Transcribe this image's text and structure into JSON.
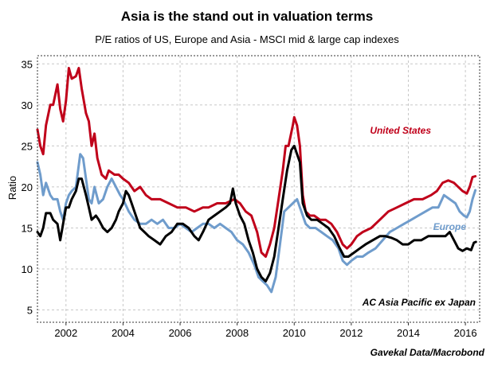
{
  "chart_data": {
    "type": "line",
    "title": "Asia is the stand out in valuation terms",
    "subtitle": "P/E ratios of US, Europe and Asia - MSCI mid & large cap indexes",
    "ylabel": "Ratio",
    "xlabel": "",
    "source": "Gavekal Data/Macrobond",
    "xlim": [
      2001.0,
      2016.5
    ],
    "ylim": [
      3.5,
      36
    ],
    "x_ticks": [
      2002,
      2004,
      2006,
      2008,
      2010,
      2012,
      2014,
      2016
    ],
    "y_ticks": [
      5,
      10,
      15,
      20,
      25,
      30,
      35
    ],
    "grid": true,
    "series": [
      {
        "name": "United States",
        "color": "#c0001a",
        "label_position": "upper right, above line",
        "points": [
          [
            2001.0,
            27
          ],
          [
            2001.1,
            25
          ],
          [
            2001.2,
            24
          ],
          [
            2001.3,
            27.5
          ],
          [
            2001.45,
            30
          ],
          [
            2001.55,
            30
          ],
          [
            2001.7,
            32.5
          ],
          [
            2001.8,
            29.5
          ],
          [
            2001.9,
            28
          ],
          [
            2002.0,
            30.5
          ],
          [
            2002.1,
            34.5
          ],
          [
            2002.2,
            33.2
          ],
          [
            2002.35,
            33.5
          ],
          [
            2002.45,
            34.5
          ],
          [
            2002.55,
            32
          ],
          [
            2002.7,
            29
          ],
          [
            2002.8,
            28
          ],
          [
            2002.9,
            25
          ],
          [
            2003.0,
            26.5
          ],
          [
            2003.1,
            23.5
          ],
          [
            2003.25,
            21.5
          ],
          [
            2003.4,
            21
          ],
          [
            2003.5,
            22
          ],
          [
            2003.7,
            21.5
          ],
          [
            2003.85,
            21.5
          ],
          [
            2004.0,
            21
          ],
          [
            2004.2,
            20.5
          ],
          [
            2004.4,
            19.5
          ],
          [
            2004.6,
            20
          ],
          [
            2004.8,
            19
          ],
          [
            2005.0,
            18.5
          ],
          [
            2005.3,
            18.5
          ],
          [
            2005.6,
            18
          ],
          [
            2005.9,
            17.5
          ],
          [
            2006.2,
            17.5
          ],
          [
            2006.5,
            17
          ],
          [
            2006.8,
            17.5
          ],
          [
            2007.0,
            17.5
          ],
          [
            2007.3,
            18
          ],
          [
            2007.6,
            18
          ],
          [
            2007.9,
            18.5
          ],
          [
            2008.1,
            18
          ],
          [
            2008.3,
            17
          ],
          [
            2008.5,
            16.5
          ],
          [
            2008.7,
            14.5
          ],
          [
            2008.85,
            12
          ],
          [
            2009.0,
            11.5
          ],
          [
            2009.15,
            13
          ],
          [
            2009.3,
            15
          ],
          [
            2009.45,
            18.5
          ],
          [
            2009.6,
            22
          ],
          [
            2009.7,
            25
          ],
          [
            2009.8,
            25
          ],
          [
            2009.95,
            27.5
          ],
          [
            2010.0,
            28.5
          ],
          [
            2010.1,
            27.5
          ],
          [
            2010.2,
            25
          ],
          [
            2010.3,
            19
          ],
          [
            2010.4,
            17
          ],
          [
            2010.55,
            16.5
          ],
          [
            2010.7,
            16.5
          ],
          [
            2010.9,
            16
          ],
          [
            2011.1,
            16
          ],
          [
            2011.3,
            15.5
          ],
          [
            2011.5,
            14.5
          ],
          [
            2011.7,
            13
          ],
          [
            2011.85,
            12.5
          ],
          [
            2012.0,
            13
          ],
          [
            2012.2,
            14
          ],
          [
            2012.4,
            14.5
          ],
          [
            2012.7,
            15
          ],
          [
            2013.0,
            16
          ],
          [
            2013.3,
            17
          ],
          [
            2013.6,
            17.5
          ],
          [
            2013.9,
            18
          ],
          [
            2014.2,
            18.5
          ],
          [
            2014.5,
            18.5
          ],
          [
            2014.8,
            19
          ],
          [
            2015.0,
            19.5
          ],
          [
            2015.2,
            20.5
          ],
          [
            2015.4,
            20.8
          ],
          [
            2015.6,
            20.5
          ],
          [
            2015.75,
            20
          ],
          [
            2015.9,
            19.5
          ],
          [
            2016.05,
            19.2
          ],
          [
            2016.15,
            20
          ],
          [
            2016.25,
            21.2
          ],
          [
            2016.35,
            21.3
          ]
        ]
      },
      {
        "name": "Europe",
        "color": "#6f9ccc",
        "label_position": "right, above line",
        "points": [
          [
            2001.0,
            23
          ],
          [
            2001.1,
            21.5
          ],
          [
            2001.2,
            19
          ],
          [
            2001.3,
            20.5
          ],
          [
            2001.45,
            19
          ],
          [
            2001.55,
            18.5
          ],
          [
            2001.7,
            18.5
          ],
          [
            2001.8,
            17
          ],
          [
            2001.9,
            16
          ],
          [
            2002.0,
            18
          ],
          [
            2002.1,
            19
          ],
          [
            2002.2,
            19.5
          ],
          [
            2002.35,
            20
          ],
          [
            2002.5,
            24
          ],
          [
            2002.6,
            23.5
          ],
          [
            2002.7,
            21
          ],
          [
            2002.8,
            18.5
          ],
          [
            2002.9,
            18
          ],
          [
            2003.0,
            20
          ],
          [
            2003.15,
            18
          ],
          [
            2003.3,
            18.5
          ],
          [
            2003.45,
            20
          ],
          [
            2003.6,
            21
          ],
          [
            2003.75,
            20
          ],
          [
            2003.9,
            19
          ],
          [
            2004.0,
            18.5
          ],
          [
            2004.2,
            17
          ],
          [
            2004.4,
            16
          ],
          [
            2004.6,
            15.5
          ],
          [
            2004.8,
            15.5
          ],
          [
            2005.0,
            16
          ],
          [
            2005.2,
            15.5
          ],
          [
            2005.4,
            16
          ],
          [
            2005.6,
            15
          ],
          [
            2005.8,
            15
          ],
          [
            2006.0,
            15.5
          ],
          [
            2006.2,
            15
          ],
          [
            2006.4,
            14.5
          ],
          [
            2006.6,
            15
          ],
          [
            2006.8,
            15.5
          ],
          [
            2007.0,
            15.5
          ],
          [
            2007.2,
            15
          ],
          [
            2007.4,
            15.5
          ],
          [
            2007.6,
            15
          ],
          [
            2007.8,
            14.5
          ],
          [
            2008.0,
            13.5
          ],
          [
            2008.2,
            13
          ],
          [
            2008.4,
            12
          ],
          [
            2008.6,
            10.5
          ],
          [
            2008.75,
            9
          ],
          [
            2008.9,
            8.5
          ],
          [
            2009.05,
            8
          ],
          [
            2009.2,
            7.2
          ],
          [
            2009.35,
            9
          ],
          [
            2009.5,
            13
          ],
          [
            2009.65,
            17
          ],
          [
            2009.8,
            17.5
          ],
          [
            2009.95,
            18
          ],
          [
            2010.1,
            18.5
          ],
          [
            2010.25,
            17
          ],
          [
            2010.4,
            15.5
          ],
          [
            2010.55,
            15
          ],
          [
            2010.75,
            15
          ],
          [
            2010.95,
            14.5
          ],
          [
            2011.15,
            14
          ],
          [
            2011.35,
            13.5
          ],
          [
            2011.55,
            12.5
          ],
          [
            2011.7,
            11
          ],
          [
            2011.85,
            10.5
          ],
          [
            2012.0,
            11
          ],
          [
            2012.2,
            11.5
          ],
          [
            2012.4,
            11.5
          ],
          [
            2012.6,
            12
          ],
          [
            2012.85,
            12.5
          ],
          [
            2013.1,
            13.5
          ],
          [
            2013.35,
            14.5
          ],
          [
            2013.6,
            15
          ],
          [
            2013.85,
            15.5
          ],
          [
            2014.1,
            16
          ],
          [
            2014.35,
            16.5
          ],
          [
            2014.6,
            17
          ],
          [
            2014.85,
            17.5
          ],
          [
            2015.05,
            17.5
          ],
          [
            2015.25,
            19
          ],
          [
            2015.45,
            18.5
          ],
          [
            2015.65,
            18
          ],
          [
            2015.8,
            17
          ],
          [
            2015.95,
            16.5
          ],
          [
            2016.05,
            16.3
          ],
          [
            2016.15,
            17
          ],
          [
            2016.25,
            18.5
          ],
          [
            2016.35,
            19.6
          ]
        ]
      },
      {
        "name": "AC Asia Pacific ex Japan",
        "color": "#000000",
        "label_position": "bottom right",
        "points": [
          [
            2001.0,
            14.5
          ],
          [
            2001.1,
            14
          ],
          [
            2001.2,
            15
          ],
          [
            2001.3,
            16.8
          ],
          [
            2001.45,
            16.8
          ],
          [
            2001.55,
            16
          ],
          [
            2001.7,
            15.5
          ],
          [
            2001.8,
            13.5
          ],
          [
            2001.9,
            15.5
          ],
          [
            2002.0,
            17.5
          ],
          [
            2002.1,
            17.5
          ],
          [
            2002.2,
            18.5
          ],
          [
            2002.35,
            19.5
          ],
          [
            2002.45,
            21
          ],
          [
            2002.55,
            21
          ],
          [
            2002.7,
            19
          ],
          [
            2002.8,
            17.5
          ],
          [
            2002.9,
            16
          ],
          [
            2003.05,
            16.5
          ],
          [
            2003.15,
            16
          ],
          [
            2003.3,
            15
          ],
          [
            2003.45,
            14.5
          ],
          [
            2003.6,
            15
          ],
          [
            2003.75,
            16
          ],
          [
            2003.85,
            17
          ],
          [
            2004.0,
            18
          ],
          [
            2004.1,
            19.5
          ],
          [
            2004.2,
            19
          ],
          [
            2004.3,
            18
          ],
          [
            2004.45,
            16.5
          ],
          [
            2004.6,
            15
          ],
          [
            2004.75,
            14.5
          ],
          [
            2004.9,
            14
          ],
          [
            2005.1,
            13.5
          ],
          [
            2005.3,
            13
          ],
          [
            2005.5,
            14
          ],
          [
            2005.7,
            14.5
          ],
          [
            2005.9,
            15.5
          ],
          [
            2006.1,
            15.5
          ],
          [
            2006.3,
            15
          ],
          [
            2006.5,
            14
          ],
          [
            2006.65,
            13.5
          ],
          [
            2006.8,
            14.5
          ],
          [
            2007.0,
            16
          ],
          [
            2007.2,
            16.5
          ],
          [
            2007.4,
            17
          ],
          [
            2007.6,
            17.5
          ],
          [
            2007.75,
            18
          ],
          [
            2007.85,
            19.8
          ],
          [
            2007.95,
            18
          ],
          [
            2008.1,
            16.5
          ],
          [
            2008.25,
            15.5
          ],
          [
            2008.4,
            13.5
          ],
          [
            2008.55,
            12
          ],
          [
            2008.7,
            10
          ],
          [
            2008.85,
            9
          ],
          [
            2009.0,
            8.5
          ],
          [
            2009.15,
            9.5
          ],
          [
            2009.3,
            11.5
          ],
          [
            2009.45,
            15
          ],
          [
            2009.6,
            18.5
          ],
          [
            2009.75,
            22
          ],
          [
            2009.9,
            24.5
          ],
          [
            2010.0,
            25
          ],
          [
            2010.1,
            24
          ],
          [
            2010.2,
            23
          ],
          [
            2010.3,
            18
          ],
          [
            2010.45,
            16.5
          ],
          [
            2010.6,
            16
          ],
          [
            2010.8,
            16
          ],
          [
            2011.0,
            15.5
          ],
          [
            2011.2,
            15
          ],
          [
            2011.4,
            14
          ],
          [
            2011.6,
            12.5
          ],
          [
            2011.75,
            11.5
          ],
          [
            2011.9,
            11.5
          ],
          [
            2012.1,
            12
          ],
          [
            2012.3,
            12.5
          ],
          [
            2012.5,
            13
          ],
          [
            2012.75,
            13.5
          ],
          [
            2013.0,
            14
          ],
          [
            2013.2,
            14
          ],
          [
            2013.4,
            13.8
          ],
          [
            2013.6,
            13.5
          ],
          [
            2013.8,
            13
          ],
          [
            2014.0,
            13
          ],
          [
            2014.2,
            13.5
          ],
          [
            2014.45,
            13.5
          ],
          [
            2014.7,
            14
          ],
          [
            2014.9,
            14
          ],
          [
            2015.1,
            14
          ],
          [
            2015.3,
            14
          ],
          [
            2015.45,
            14.5
          ],
          [
            2015.6,
            13.5
          ],
          [
            2015.75,
            12.5
          ],
          [
            2015.9,
            12.2
          ],
          [
            2016.05,
            12.5
          ],
          [
            2016.2,
            12.3
          ],
          [
            2016.3,
            13.2
          ],
          [
            2016.37,
            13.3
          ]
        ]
      }
    ]
  }
}
